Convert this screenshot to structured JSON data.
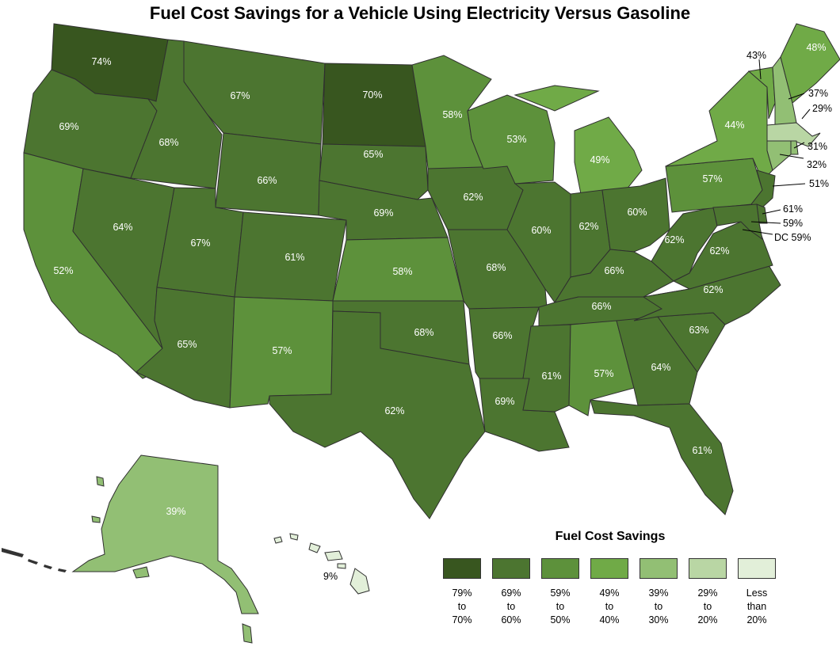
{
  "title": "Fuel Cost Savings for a Vehicle Using Electricity Versus Gasoline",
  "colors": {
    "c1": "#38561f",
    "c2": "#4c7530",
    "c3": "#5d913b",
    "c4": "#70aa47",
    "c5": "#92bf74",
    "c6": "#b9d6a4",
    "c7": "#e2efd9"
  },
  "legend": {
    "title": "Fuel Cost Savings",
    "items": [
      {
        "color": "c1",
        "lines": [
          "79%",
          "to",
          "70%"
        ]
      },
      {
        "color": "c2",
        "lines": [
          "69%",
          "to",
          "60%"
        ]
      },
      {
        "color": "c3",
        "lines": [
          "59%",
          "to",
          "50%"
        ]
      },
      {
        "color": "c4",
        "lines": [
          "49%",
          "to",
          "40%"
        ]
      },
      {
        "color": "c5",
        "lines": [
          "39%",
          "to",
          "30%"
        ]
      },
      {
        "color": "c6",
        "lines": [
          "29%",
          "to",
          "20%"
        ]
      },
      {
        "color": "c7",
        "lines": [
          "Less",
          "than",
          "20%"
        ]
      }
    ]
  },
  "states": {
    "WA": "74%",
    "OR": "69%",
    "CA": "52%",
    "ID": "68%",
    "NV": "64%",
    "MT": "67%",
    "WY": "66%",
    "UT": "67%",
    "AZ": "65%",
    "CO": "61%",
    "NM": "57%",
    "ND": "70%",
    "SD": "65%",
    "NE": "69%",
    "KS": "58%",
    "OK": "68%",
    "TX": "62%",
    "MN": "58%",
    "IA": "62%",
    "MO": "68%",
    "AR": "66%",
    "LA": "69%",
    "WI": "53%",
    "IL": "60%",
    "MI": "49%",
    "IN": "62%",
    "OH": "60%",
    "KY": "66%",
    "TN": "66%",
    "MS": "61%",
    "AL": "57%",
    "GA": "64%",
    "FL": "61%",
    "SC": "63%",
    "NC": "62%",
    "VA": "62%",
    "WV": "62%",
    "PA": "57%",
    "NY": "44%",
    "VT": "43%",
    "NH": "37%",
    "ME": "48%",
    "MA": "29%",
    "RI": "31%",
    "CT": "32%",
    "NJ": "51%",
    "DE": "61%",
    "MD": "59%",
    "DC": "DC 59%",
    "AK": "39%",
    "HI": "9%"
  }
}
